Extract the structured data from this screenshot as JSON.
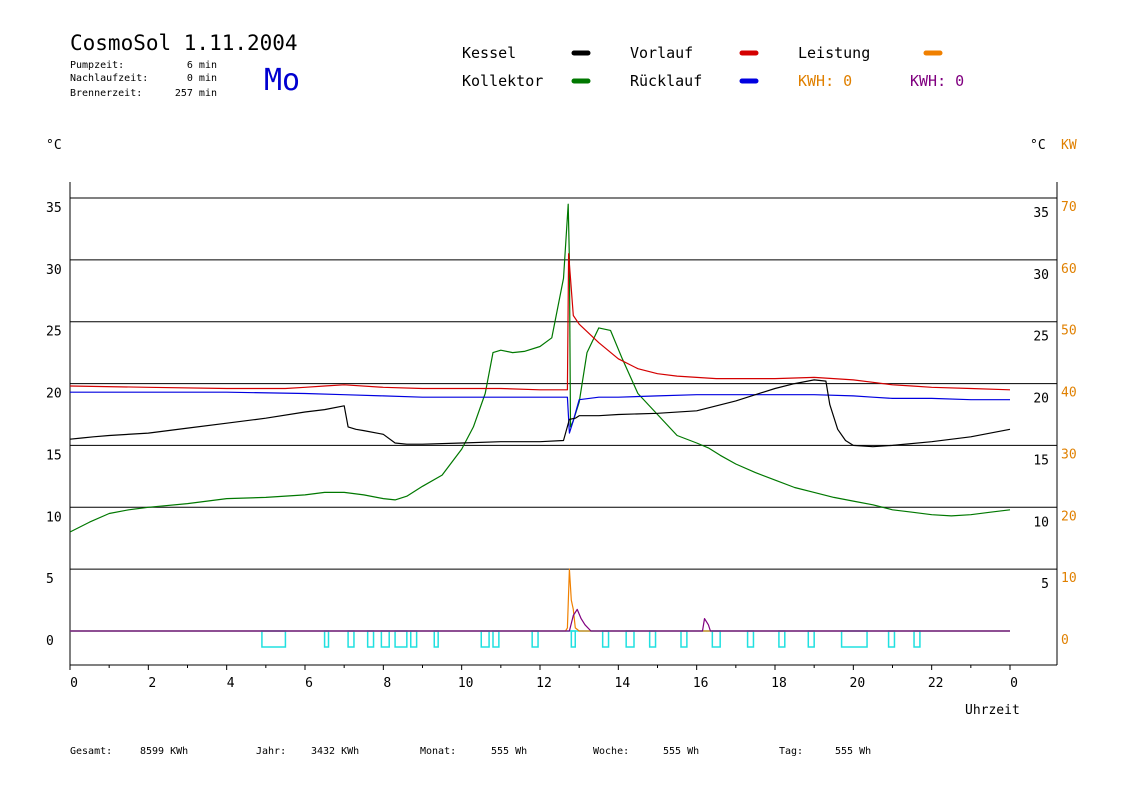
{
  "header": {
    "title": "CosmoSol 1.11.2004",
    "day": "Mo",
    "stats": [
      {
        "label": "Pumpzeit:",
        "value": "6 min"
      },
      {
        "label": "Nachlaufzeit:",
        "value": "0 min"
      },
      {
        "label": "Brennerzeit:",
        "value": "257 min"
      }
    ]
  },
  "legend": [
    {
      "name": "Kessel",
      "color": "#000000"
    },
    {
      "name": "Vorlauf",
      "color": "#d40000"
    },
    {
      "name": "Leistung",
      "color": "#f08000"
    },
    {
      "name": "Kollektor",
      "color": "#007800"
    },
    {
      "name": "Rücklauf",
      "color": "#0000e0"
    }
  ],
  "kwh": [
    {
      "label": "KWH: 0",
      "color": "#e08000"
    },
    {
      "label": "KWH: 0",
      "color": "#800080"
    }
  ],
  "footer": [
    {
      "label": "Gesamt:",
      "value": "8599 KWh"
    },
    {
      "label": "Jahr:",
      "value": "3432 KWh"
    },
    {
      "label": "Monat:",
      "value": "555 Wh"
    },
    {
      "label": "Woche:",
      "value": "555 Wh"
    },
    {
      "label": "Tag:",
      "value": "555 Wh"
    }
  ],
  "chart_data": {
    "type": "line",
    "xlabel": "Uhrzeit",
    "ylabel_left": "°C",
    "ylabel_right": "°C",
    "ylabel_right2": "KW",
    "xlim": [
      0,
      24
    ],
    "ylim": [
      0,
      35
    ],
    "ylim_kw": [
      0,
      70
    ],
    "x_ticks": [
      "0",
      "2",
      "4",
      "6",
      "8",
      "10",
      "12",
      "14",
      "16",
      "18",
      "20",
      "22",
      "0"
    ],
    "y_ticks_left": [
      0,
      5,
      10,
      15,
      20,
      25,
      30,
      35
    ],
    "y_ticks_right": [
      5,
      10,
      15,
      20,
      25,
      30,
      35
    ],
    "y_ticks_kw": [
      0,
      10,
      20,
      30,
      40,
      50,
      60,
      70
    ],
    "grid": true,
    "series": [
      {
        "name": "Kollektor",
        "color": "#007800",
        "x": [
          0,
          0.5,
          1,
          1.5,
          2,
          3,
          4,
          5,
          6,
          6.5,
          7,
          7.5,
          8,
          8.3,
          8.6,
          9,
          9.5,
          10,
          10.3,
          10.6,
          10.8,
          11,
          11.3,
          11.6,
          12,
          12.3,
          12.6,
          12.72,
          12.75,
          12.78,
          12.85,
          13,
          13.2,
          13.5,
          13.8,
          14.1,
          14.5,
          15,
          15.5,
          16,
          16.3,
          16.6,
          17,
          17.5,
          18,
          18.5,
          19,
          19.5,
          20,
          20.5,
          21,
          21.5,
          22,
          22.5,
          23,
          23.5,
          24
        ],
        "y": [
          8,
          8.8,
          9.5,
          9.8,
          10,
          10.3,
          10.7,
          10.8,
          11,
          11.2,
          11.2,
          11,
          10.7,
          10.6,
          10.9,
          11.7,
          12.6,
          14.7,
          16.5,
          19.2,
          22.5,
          22.7,
          22.5,
          22.6,
          23,
          23.7,
          28.5,
          34.5,
          30,
          16.5,
          17,
          18.5,
          22.5,
          24.5,
          24.3,
          22,
          19.2,
          17.5,
          15.8,
          15.2,
          14.8,
          14.2,
          13.5,
          12.8,
          12.2,
          11.6,
          11.2,
          10.8,
          10.5,
          10.2,
          9.8,
          9.6,
          9.4,
          9.3,
          9.4,
          9.6,
          9.8
        ]
      },
      {
        "name": "Vorlauf",
        "color": "#d40000",
        "x": [
          0,
          2,
          4,
          5.5,
          6,
          6.5,
          7,
          8,
          9,
          10,
          11,
          12,
          12.5,
          12.7,
          12.73,
          12.78,
          12.85,
          13,
          13.5,
          14,
          14.5,
          15,
          15.5,
          16,
          16.5,
          17,
          18,
          19,
          19.5,
          20,
          20.5,
          21,
          21.5,
          22,
          23,
          24
        ],
        "y": [
          19.8,
          19.7,
          19.6,
          19.6,
          19.7,
          19.8,
          19.9,
          19.7,
          19.6,
          19.6,
          19.6,
          19.5,
          19.5,
          19.5,
          30.5,
          28.5,
          25.5,
          24.8,
          23.3,
          22,
          21.2,
          20.8,
          20.6,
          20.5,
          20.4,
          20.4,
          20.4,
          20.5,
          20.4,
          20.3,
          20.1,
          19.9,
          19.8,
          19.7,
          19.6,
          19.5
        ]
      },
      {
        "name": "Rücklauf",
        "color": "#0000e0",
        "x": [
          0,
          4,
          6,
          7,
          8,
          9,
          10,
          11,
          12,
          12.6,
          12.7,
          12.75,
          12.85,
          13,
          13.5,
          14,
          15,
          16,
          17,
          18,
          19,
          20,
          20.5,
          21,
          22,
          23,
          24
        ],
        "y": [
          19.3,
          19.3,
          19.2,
          19.1,
          19,
          18.9,
          18.9,
          18.9,
          18.9,
          18.9,
          18.9,
          16,
          17,
          18.7,
          18.9,
          18.9,
          19,
          19.1,
          19.1,
          19.1,
          19.1,
          19,
          18.9,
          18.8,
          18.8,
          18.7,
          18.7
        ]
      },
      {
        "name": "Kessel",
        "color": "#000000",
        "x": [
          0,
          0.3,
          0.6,
          1,
          2,
          3,
          4,
          5,
          6,
          6.5,
          7,
          7.1,
          7.3,
          7.5,
          8,
          8.3,
          8.6,
          9,
          10,
          11,
          12,
          12.6,
          12.75,
          12.9,
          13,
          13.5,
          14,
          15,
          16,
          17,
          18,
          18.5,
          19,
          19.3,
          19.4,
          19.6,
          19.8,
          20,
          20.5,
          21,
          22,
          23,
          24
        ],
        "y": [
          15.5,
          15.6,
          15.7,
          15.8,
          16,
          16.4,
          16.8,
          17.2,
          17.7,
          17.9,
          18.2,
          16.5,
          16.3,
          16.2,
          15.9,
          15.2,
          15.1,
          15.1,
          15.2,
          15.3,
          15.3,
          15.4,
          17.1,
          17.2,
          17.4,
          17.4,
          17.5,
          17.6,
          17.8,
          18.6,
          19.6,
          20,
          20.3,
          20.2,
          18.3,
          16.3,
          15.4,
          15,
          14.9,
          15,
          15.3,
          15.7,
          16.3
        ]
      },
      {
        "name": "Leistung",
        "color": "#f08000",
        "axis": "kw",
        "x": [
          0,
          12.65,
          12.7,
          12.75,
          12.8,
          12.85,
          12.9,
          13,
          24
        ],
        "y": [
          0,
          0,
          0.5,
          10,
          5,
          3.5,
          0.5,
          0,
          0
        ]
      },
      {
        "name": "",
        "color": "#800080",
        "axis": "kw",
        "x": [
          0,
          12.75,
          12.85,
          12.95,
          13.05,
          13.15,
          13.3,
          16.15,
          16.2,
          16.3,
          16.35,
          24
        ],
        "y": [
          0,
          0,
          2.5,
          3.5,
          2,
          1,
          0,
          0,
          2,
          1,
          0,
          0
        ]
      }
    ],
    "burner_pulses": [
      [
        4.9,
        5.5
      ],
      [
        6.5,
        6.6
      ],
      [
        7.1,
        7.25
      ],
      [
        7.6,
        7.75
      ],
      [
        7.95,
        8.15
      ],
      [
        8.3,
        8.6
      ],
      [
        8.7,
        8.85
      ],
      [
        9.3,
        9.4
      ],
      [
        10.5,
        10.7
      ],
      [
        10.8,
        10.95
      ],
      [
        11.8,
        11.95
      ],
      [
        12.8,
        12.9
      ],
      [
        13.6,
        13.75
      ],
      [
        14.2,
        14.4
      ],
      [
        14.8,
        14.95
      ],
      [
        15.6,
        15.75
      ],
      [
        16.4,
        16.6
      ],
      [
        17.3,
        17.45
      ],
      [
        18.1,
        18.25
      ],
      [
        18.85,
        19
      ],
      [
        19.7,
        20.35
      ],
      [
        20.9,
        21.05
      ],
      [
        21.55,
        21.7
      ]
    ],
    "burner_color": "#20e0e0"
  }
}
